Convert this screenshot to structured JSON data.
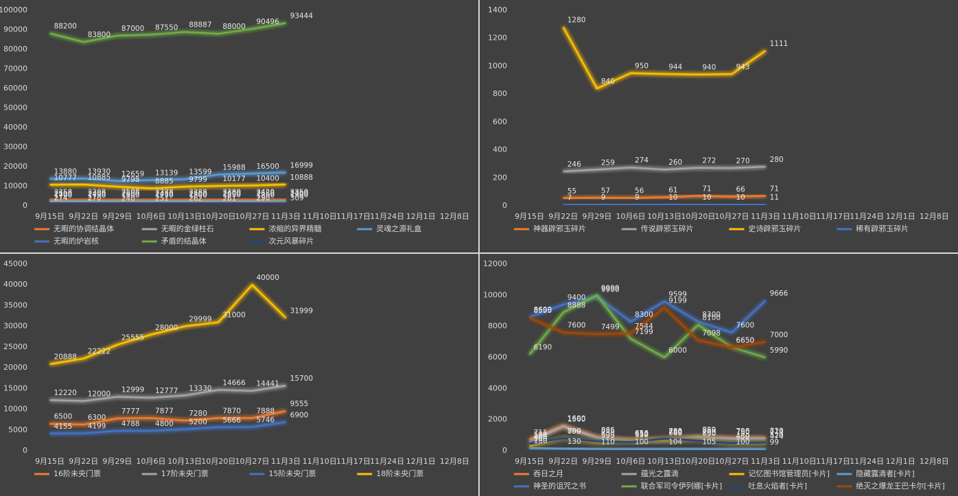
{
  "chart_data": [
    {
      "type": "line",
      "ylim": [
        0,
        100000
      ],
      "yticks": [
        0,
        10000,
        20000,
        30000,
        40000,
        50000,
        60000,
        70000,
        80000,
        90000,
        100000
      ],
      "grid": false,
      "legend": "bottom",
      "categories": [
        "9月15日",
        "9月22日",
        "9月29日",
        "10月6日",
        "10月13日",
        "10月20日",
        "10月27日",
        "11月3日",
        "11月10日",
        "11月17日",
        "11月24日",
        "12月1日",
        "12月8日"
      ],
      "series": [
        {
          "name": "无暇的协调结晶体",
          "color": "#ed7d31",
          "values": [
            3358,
            3308,
            3508,
            3338,
            3388,
            3380,
            3420,
            3350,
            null,
            null,
            null,
            null,
            null
          ]
        },
        {
          "name": "无暇的金绿柱石",
          "color": "#a5a5a5",
          "values": [
            2500,
            2400,
            2600,
            2450,
            2500,
            2600,
            2550,
            2700,
            null,
            null,
            null,
            null,
            null
          ]
        },
        {
          "name": "浓缩的异界精髓",
          "color": "#ffc000",
          "values": [
            10777,
            10885,
            9798,
            8885,
            9799,
            10177,
            10400,
            10888,
            null,
            null,
            null,
            null,
            null
          ]
        },
        {
          "name": "灵魂之源礼盒",
          "color": "#5b9bd5",
          "values": [
            13880,
            13930,
            12659,
            13139,
            13599,
            15988,
            16500,
            16999,
            null,
            null,
            null,
            null,
            null
          ]
        },
        {
          "name": "无暇的炉岩核",
          "color": "#4472c4",
          "values": [
            1700,
            1750,
            1800,
            1750,
            1800,
            1850,
            1800,
            1900,
            null,
            null,
            null,
            null,
            null
          ]
        },
        {
          "name": "矛盾的结晶体",
          "color": "#70ad47",
          "values": [
            88200,
            83800,
            87000,
            87550,
            88887,
            88000,
            90496,
            93444,
            null,
            null,
            null,
            null,
            null
          ]
        },
        {
          "name": "次元风暴碎片",
          "color": "#264478",
          "values": [
            274,
            270,
            240,
            251,
            262,
            261,
            290,
            309,
            null,
            null,
            null,
            null,
            null
          ]
        }
      ]
    },
    {
      "type": "line",
      "ylim": [
        0,
        1400
      ],
      "yticks": [
        0,
        200,
        400,
        600,
        800,
        1000,
        1200,
        1400
      ],
      "grid": false,
      "legend": "bottom",
      "categories": [
        "9月15日",
        "9月22日",
        "9月29日",
        "10月6日",
        "10月13日",
        "10月20日",
        "10月27日",
        "11月3日",
        "11月10日",
        "11月17日",
        "11月24日",
        "12月1日",
        "12月8日"
      ],
      "series": [
        {
          "name": "神器辟邪玉碎片",
          "color": "#ed7d31",
          "values": [
            null,
            55,
            57,
            56,
            61,
            71,
            66,
            71,
            null,
            null,
            null,
            null,
            null
          ]
        },
        {
          "name": "传说辟邪玉碎片",
          "color": "#a5a5a5",
          "values": [
            null,
            246,
            259,
            274,
            260,
            272,
            270,
            280,
            null,
            null,
            null,
            null,
            null
          ]
        },
        {
          "name": "史诗辟邪玉碎片",
          "color": "#ffc000",
          "values": [
            null,
            1280,
            840,
            950,
            944,
            940,
            943,
            1111,
            null,
            null,
            null,
            null,
            null
          ]
        },
        {
          "name": "稀有辟邪玉碎片",
          "color": "#4472c4",
          "values": [
            null,
            7,
            9,
            9,
            10,
            10,
            10,
            11,
            null,
            null,
            null,
            null,
            null
          ]
        }
      ]
    },
    {
      "type": "line",
      "ylim": [
        0,
        45000
      ],
      "yticks": [
        0,
        5000,
        10000,
        15000,
        20000,
        25000,
        30000,
        35000,
        40000,
        45000
      ],
      "grid": false,
      "legend": "bottom",
      "categories": [
        "9月15日",
        "9月22日",
        "9月29日",
        "10月6日",
        "10月13日",
        "10月20日",
        "10月27日",
        "11月3日",
        "11月10日",
        "11月17日",
        "11月24日",
        "12月1日",
        "12月8日"
      ],
      "series": [
        {
          "name": "16阶未央门票",
          "color": "#ed7d31",
          "values": [
            6500,
            6300,
            7777,
            7877,
            7280,
            7870,
            7888,
            9555,
            null,
            null,
            null,
            null,
            null
          ]
        },
        {
          "name": "17阶未央门票",
          "color": "#a5a5a5",
          "values": [
            12220,
            12000,
            12999,
            12777,
            13330,
            14666,
            14441,
            15700,
            null,
            null,
            null,
            null,
            null
          ]
        },
        {
          "name": "15阶未央门票",
          "color": "#4472c4",
          "values": [
            4155,
            4199,
            4788,
            4800,
            5200,
            5666,
            5746,
            6900,
            null,
            null,
            null,
            null,
            null
          ]
        },
        {
          "name": "18阶未央门票",
          "color": "#ffc000",
          "values": [
            20888,
            22222,
            25555,
            28000,
            29999,
            31000,
            40000,
            31999,
            null,
            null,
            null,
            null,
            null
          ]
        }
      ]
    },
    {
      "type": "line",
      "ylim": [
        0,
        12000
      ],
      "yticks": [
        0,
        2000,
        4000,
        6000,
        8000,
        10000,
        12000
      ],
      "grid": false,
      "legend": "bottom",
      "categories": [
        "9月15日",
        "9月22日",
        "9月29日",
        "10月6日",
        "10月13日",
        "10月20日",
        "10月27日",
        "11月3日",
        "11月10日",
        "11月17日",
        "11月24日",
        "12月1日",
        "12月8日"
      ],
      "series": [
        {
          "name": "吞日之月",
          "color": "#ed7d31",
          "values": [
            711,
            1600,
            866,
            656,
            788,
            850,
            798,
            810,
            null,
            null,
            null,
            null,
            null
          ]
        },
        {
          "name": "蕴光之露滴",
          "color": "#a5a5a5",
          "values": [
            580,
            1560,
            835,
            650,
            688,
            889,
            760,
            774,
            null,
            null,
            null,
            null,
            null
          ]
        },
        {
          "name": "记忆图书馆管理员[卡片]",
          "color": "#ffc000",
          "values": [
            300,
            799,
            535,
            612,
            700,
            700,
            459,
            474,
            null,
            null,
            null,
            null,
            null
          ]
        },
        {
          "name": "隐藏露滴者[卡片]",
          "color": "#5b9bd5",
          "values": [
            180,
            130,
            110,
            100,
            104,
            105,
            100,
            99,
            null,
            null,
            null,
            null,
            null
          ]
        },
        {
          "name": "神圣的诅咒之书",
          "color": "#4472c4",
          "values": [
            8600,
            9400,
            9900,
            8300,
            9599,
            8300,
            7600,
            9666,
            null,
            null,
            null,
            null,
            null
          ]
        },
        {
          "name": "联合军司令伊列娜[卡片]",
          "color": "#70ad47",
          "values": [
            6190,
            8888,
            9999,
            7199,
            6000,
            8100,
            6650,
            5990,
            null,
            null,
            null,
            null,
            null
          ]
        },
        {
          "name": "吐息火焰者[卡片]",
          "color": "#264478",
          "values": [
            450,
            800,
            600,
            550,
            780,
            650,
            480,
            520,
            null,
            null,
            null,
            null,
            null
          ]
        },
        {
          "name": "绝灭之爆龙王巴卡尔[卡片]",
          "color": "#9e480e",
          "values": [
            8555,
            7600,
            7499,
            7544,
            9199,
            7098,
            6650,
            7000,
            null,
            null,
            null,
            null,
            null
          ]
        }
      ]
    }
  ]
}
